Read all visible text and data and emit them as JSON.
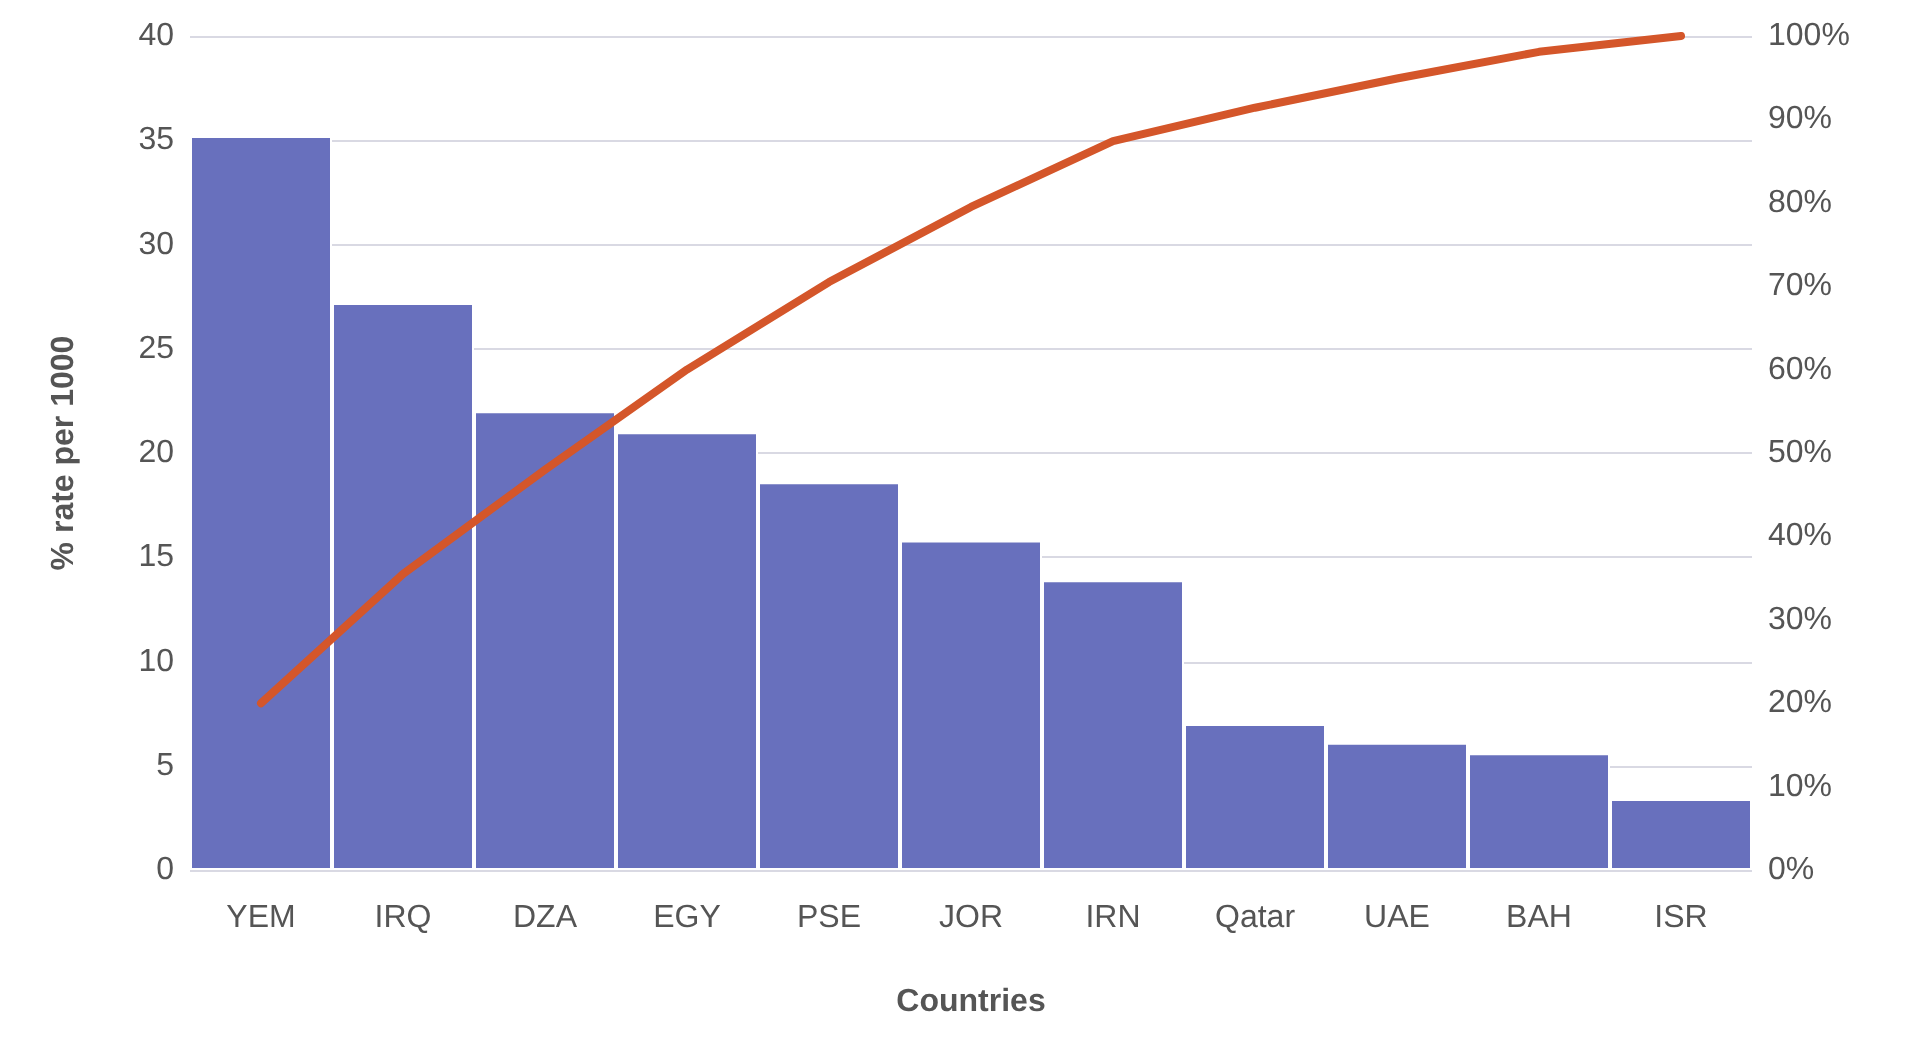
{
  "chart_data": {
    "type": "bar",
    "xlabel": "Countries",
    "ylabel": "% rate per 1000",
    "categories": [
      "YEM",
      "IRQ",
      "DZA",
      "EGY",
      "PSE",
      "JOR",
      "IRN",
      "Qatar",
      "UAE",
      "BAH",
      "ISR"
    ],
    "series": [
      {
        "color": "#6870bd",
        "values": [
          35.2,
          27.2,
          22.0,
          21.0,
          18.6,
          15.8,
          13.9,
          7.0,
          6.1,
          5.6,
          3.4
        ]
      },
      {
        "type": "line",
        "axis": "y2",
        "color": "#d4562a",
        "values": [
          20,
          35.5,
          48,
          60,
          70.5,
          79.5,
          87.4,
          91.4,
          94.9,
          98.1,
          100
        ]
      }
    ],
    "ylim": [
      0,
      40
    ],
    "yticks": [
      0,
      5,
      10,
      15,
      20,
      25,
      30,
      35,
      40
    ],
    "y2lim": [
      0,
      100
    ],
    "y2ticks": [
      {
        "value": 0,
        "label": "0%"
      },
      {
        "value": 10,
        "label": "10%"
      },
      {
        "value": 20,
        "label": "20%"
      },
      {
        "value": 30,
        "label": "30%"
      },
      {
        "value": 40,
        "label": "40%"
      },
      {
        "value": 50,
        "label": "50%"
      },
      {
        "value": 60,
        "label": "60%"
      },
      {
        "value": 70,
        "label": "70%"
      },
      {
        "value": 80,
        "label": "80%"
      },
      {
        "value": 90,
        "label": "90%"
      },
      {
        "value": 100,
        "label": "100%"
      }
    ],
    "grid": "y",
    "marker": "none"
  }
}
